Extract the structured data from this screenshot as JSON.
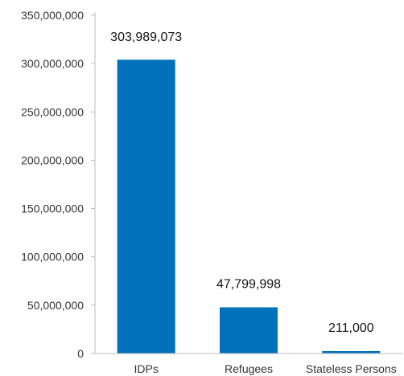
{
  "chart_data": {
    "type": "bar",
    "categories": [
      "IDPs",
      "Refugees",
      "Stateless Persons"
    ],
    "values": [
      303989073,
      47799998,
      211000
    ],
    "data_labels": [
      "303,989,073",
      "47,799,998",
      "211,000"
    ],
    "title": "",
    "xlabel": "",
    "ylabel": "",
    "ylim": [
      0,
      350000000
    ],
    "yticks": [
      0,
      50000000,
      100000000,
      150000000,
      200000000,
      250000000,
      300000000,
      350000000
    ],
    "ytick_labels": [
      "0",
      "50,000,000",
      "100,000,000",
      "150,000,000",
      "200,000,000",
      "250,000,000",
      "300,000,000",
      "350,000,000"
    ],
    "grid": false,
    "legend": "none",
    "bar_color": "#0072bc",
    "axis_color": "#bbbbbb"
  }
}
